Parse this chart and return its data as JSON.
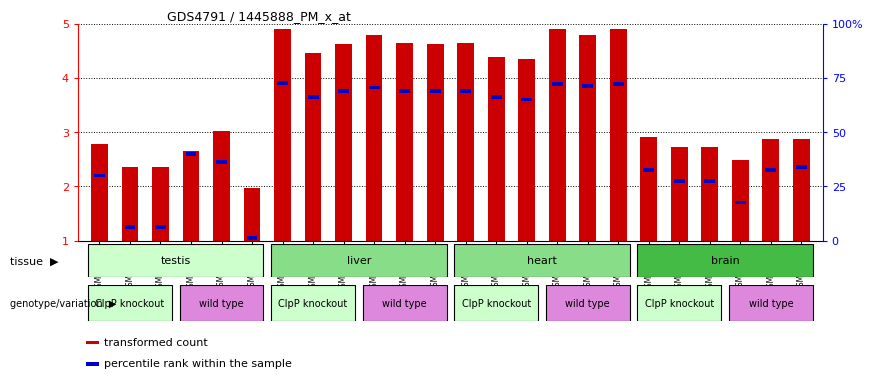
{
  "title": "GDS4791 / 1445888_PM_x_at",
  "samples": [
    "GSM988357",
    "GSM988358",
    "GSM988359",
    "GSM988360",
    "GSM988361",
    "GSM988362",
    "GSM988363",
    "GSM988364",
    "GSM988365",
    "GSM988366",
    "GSM988367",
    "GSM988368",
    "GSM988381",
    "GSM988382",
    "GSM988383",
    "GSM988384",
    "GSM988385",
    "GSM988386",
    "GSM988375",
    "GSM988376",
    "GSM988377",
    "GSM988378",
    "GSM988379",
    "GSM988380"
  ],
  "bar_heights": [
    2.78,
    2.35,
    2.35,
    2.65,
    3.02,
    1.97,
    4.9,
    4.45,
    4.62,
    4.78,
    4.65,
    4.62,
    4.65,
    4.38,
    4.35,
    4.9,
    4.78,
    4.9,
    2.9,
    2.72,
    2.72,
    2.48,
    2.88,
    2.88
  ],
  "blue_marker_pos": [
    2.2,
    1.25,
    1.25,
    2.6,
    2.45,
    1.05,
    3.9,
    3.65,
    3.75,
    3.82,
    3.75,
    3.75,
    3.75,
    3.65,
    3.6,
    3.88,
    3.85,
    3.88,
    2.3,
    2.1,
    2.1,
    1.7,
    2.3,
    2.35
  ],
  "bar_color": "#cc0000",
  "blue_color": "#0000cc",
  "ylim_left": [
    1,
    5
  ],
  "yticks_left": [
    1,
    2,
    3,
    4,
    5
  ],
  "ylim_right": [
    0,
    100
  ],
  "yticks_right": [
    0,
    25,
    50,
    75,
    100
  ],
  "ytick_labels_right": [
    "0",
    "25",
    "50",
    "75",
    "100%"
  ],
  "tissue_groups": [
    {
      "label": "testis",
      "start": 0,
      "end": 5,
      "color": "#ccffcc"
    },
    {
      "label": "liver",
      "start": 6,
      "end": 11,
      "color": "#88dd88"
    },
    {
      "label": "heart",
      "start": 12,
      "end": 17,
      "color": "#88dd88"
    },
    {
      "label": "brain",
      "start": 18,
      "end": 23,
      "color": "#44bb44"
    }
  ],
  "genotype_groups": [
    {
      "label": "ClpP knockout",
      "start": 0,
      "end": 2,
      "color": "#ccffcc"
    },
    {
      "label": "wild type",
      "start": 3,
      "end": 5,
      "color": "#dd88dd"
    },
    {
      "label": "ClpP knockout",
      "start": 6,
      "end": 8,
      "color": "#ccffcc"
    },
    {
      "label": "wild type",
      "start": 9,
      "end": 11,
      "color": "#dd88dd"
    },
    {
      "label": "ClpP knockout",
      "start": 12,
      "end": 14,
      "color": "#ccffcc"
    },
    {
      "label": "wild type",
      "start": 15,
      "end": 17,
      "color": "#dd88dd"
    },
    {
      "label": "ClpP knockout",
      "start": 18,
      "end": 20,
      "color": "#ccffcc"
    },
    {
      "label": "wild type",
      "start": 21,
      "end": 23,
      "color": "#dd88dd"
    }
  ],
  "legend_items": [
    {
      "label": "transformed count",
      "color": "#cc0000"
    },
    {
      "label": "percentile rank within the sample",
      "color": "#0000cc"
    }
  ],
  "tissue_label": "tissue",
  "genotype_label": "genotype/variation",
  "bar_width": 0.55
}
